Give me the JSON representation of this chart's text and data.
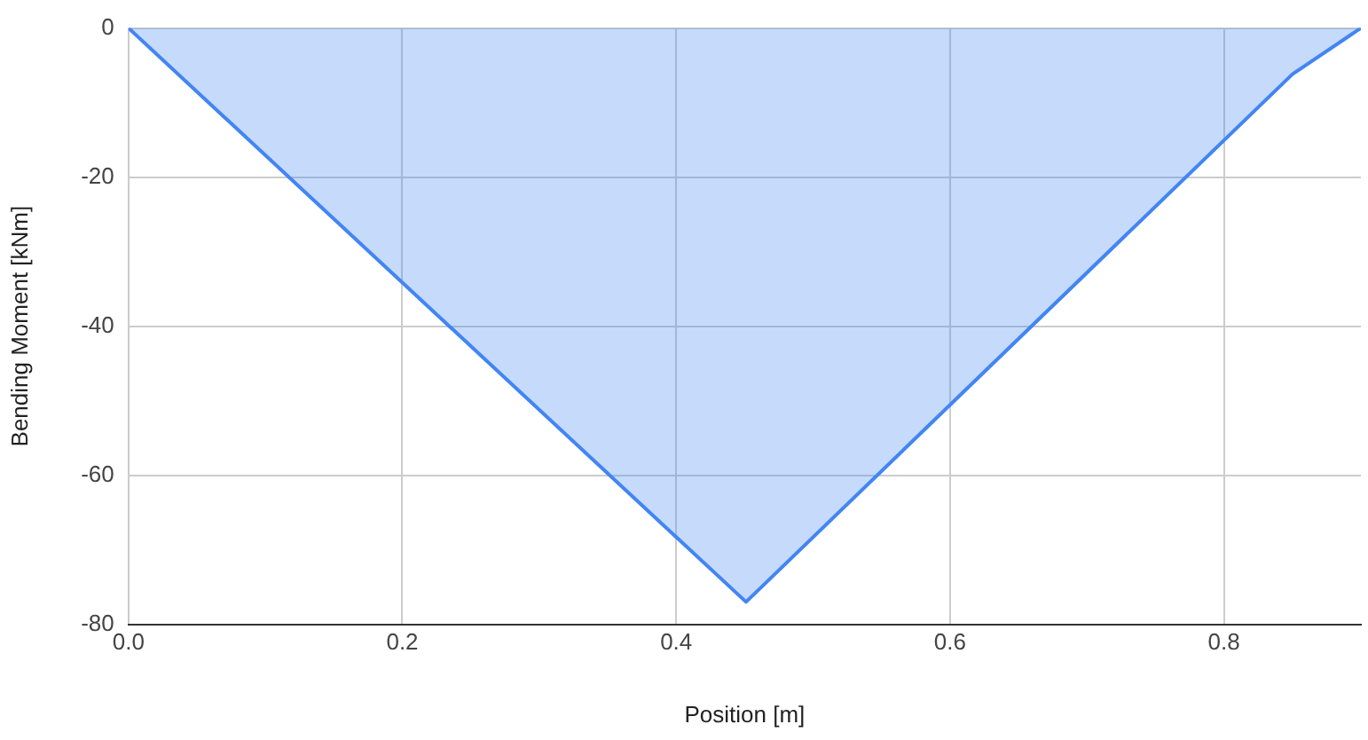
{
  "chart_data": {
    "type": "area",
    "xlabel": "Position [m]",
    "ylabel": "Bending Moment [kNm]",
    "x": [
      0,
      0.451,
      0.85,
      0.9
    ],
    "series": [
      {
        "color": "#4285f4",
        "values": [
          0,
          -77,
          -6.2,
          0
        ]
      }
    ],
    "xlim": [
      0,
      0.9
    ],
    "xticks": [
      {
        "value": 0,
        "label": "0.0"
      },
      {
        "value": 0.2,
        "label": "0.2"
      },
      {
        "value": 0.4,
        "label": "0.4"
      },
      {
        "value": 0.6,
        "label": "0.6"
      },
      {
        "value": 0.8,
        "label": "0.8"
      }
    ],
    "ylim": [
      -80,
      0
    ],
    "yticks": [
      -80,
      -60,
      -40,
      -20,
      0
    ],
    "grid": true,
    "legend": false
  }
}
